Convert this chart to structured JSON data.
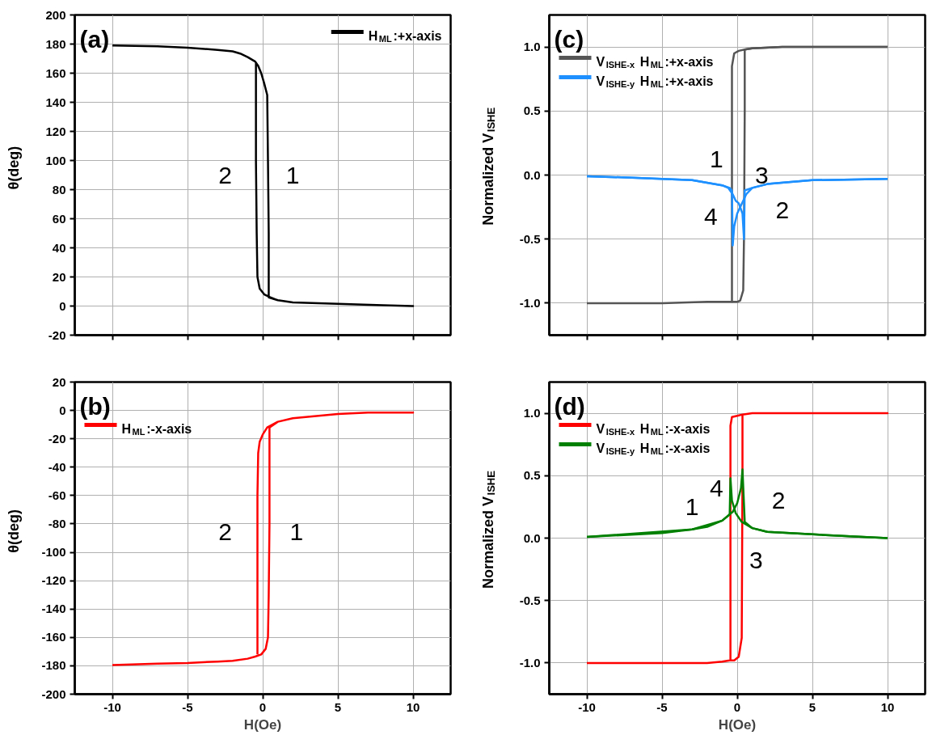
{
  "chart_data": [
    {
      "type": "line",
      "ylabel": "θ(deg)",
      "xlim": [
        -12.5,
        12.5
      ],
      "xticks": [
        -10,
        -5,
        0,
        5,
        10
      ],
      "ylim": [
        -20,
        200
      ],
      "yticks": [
        -20,
        0,
        20,
        40,
        60,
        80,
        100,
        120,
        140,
        160,
        180,
        200
      ],
      "grid": true,
      "legend": "top right",
      "tick_labels": "y",
      "annotations": [
        "(a)",
        "2",
        "1"
      ],
      "series": [
        {
          "name": "H$_{ML}$:+x-axis",
          "color": "#000000",
          "x": [
            -10,
            -7,
            -5,
            -3,
            -2,
            -1.5,
            -1,
            -0.5,
            -0.3,
            -0.1,
            0.1,
            0.3,
            0.35,
            0.4,
            0.4,
            1,
            2,
            5,
            8,
            10,
            8,
            5,
            2,
            1,
            0.5,
            0.1,
            -0.2,
            -0.35,
            -0.4,
            -0.45,
            -0.45,
            -0.45
          ],
          "values": [
            179,
            178.5,
            177.5,
            176,
            175,
            173.5,
            171,
            168,
            165,
            160,
            153,
            145,
            100,
            50,
            6,
            4,
            2.5,
            1.5,
            0.5,
            0,
            0.5,
            1.5,
            2.5,
            4,
            6,
            8,
            12,
            20,
            50,
            100,
            140,
            167
          ]
        }
      ]
    },
    {
      "type": "line",
      "ylabel": "Normalized V$_{ISHE}$",
      "xlim": [
        -12.5,
        12.5
      ],
      "xticks": [
        -10,
        -5,
        0,
        5,
        10
      ],
      "ylim": [
        -1.25,
        1.25
      ],
      "yticks": [
        {
          "value": -1.0,
          "label": "-1.0"
        },
        {
          "value": -0.5,
          "label": "-0.5"
        },
        {
          "value": 0.0,
          "label": "0.0"
        },
        {
          "value": 0.5,
          "label": "0.5"
        },
        {
          "value": 1.0,
          "label": "1.0"
        }
      ],
      "grid": true,
      "legend": "top left",
      "tick_labels": "y",
      "annotations": [
        "(c)",
        "1",
        "3",
        "2",
        "4"
      ],
      "series": [
        {
          "name": "V$_{ISHE-x}$ H$_{ML}$:+x-axis",
          "color": "#555555",
          "x": [
            -10,
            -5,
            -2,
            -0.35,
            -0.35,
            -0.35,
            -0.2,
            0.1,
            0.5,
            1,
            3,
            10
          ],
          "values": [
            -1,
            -1,
            -0.99,
            -0.99,
            0.5,
            0.85,
            0.95,
            0.97,
            0.98,
            0.99,
            1,
            1
          ]
        },
        {
          "color": "#555555",
          "x": [
            -0.35,
            0,
            0.2,
            0.4,
            0.45,
            0.5,
            0.5,
            1,
            3,
            10
          ],
          "values": [
            -0.99,
            -0.99,
            -0.98,
            -0.9,
            -0.5,
            0.5,
            0.98,
            0.99,
            1,
            1
          ]
        },
        {
          "name": "V$_{ISHE-y}$ H$_{ML}$:+x-axis",
          "color": "#1e90ff",
          "x": [
            -10,
            -7,
            -5,
            -3,
            -2,
            -1,
            -0.5,
            -0.35,
            -0.3,
            -0.2,
            0,
            0.2,
            0.4,
            0.6,
            1,
            2,
            5,
            10
          ],
          "values": [
            -0.01,
            -0.02,
            -0.03,
            -0.04,
            -0.06,
            -0.08,
            -0.1,
            -0.12,
            -0.55,
            -0.4,
            -0.3,
            -0.25,
            -0.2,
            -0.15,
            -0.1,
            -0.07,
            -0.04,
            -0.03
          ]
        },
        {
          "color": "#1e90ff",
          "x": [
            -10,
            -7,
            -3,
            -1,
            -0.6,
            -0.3,
            -0.1,
            0.1,
            0.35,
            0.45,
            0.5,
            1,
            2,
            5,
            10
          ],
          "values": [
            -0.01,
            -0.02,
            -0.04,
            -0.08,
            -0.1,
            -0.15,
            -0.2,
            -0.22,
            -0.3,
            -0.5,
            -0.12,
            -0.1,
            -0.07,
            -0.04,
            -0.03
          ]
        }
      ]
    },
    {
      "type": "line",
      "xlabel": "H(Oe)",
      "ylabel": "θ(deg)",
      "xlim": [
        -12.5,
        12.5
      ],
      "xticks": [
        -10,
        -5,
        0,
        5,
        10
      ],
      "ylim": [
        -200,
        20
      ],
      "yticks": [
        -200,
        -180,
        -160,
        -140,
        -120,
        -100,
        -80,
        -60,
        -40,
        -20,
        0,
        20
      ],
      "grid": true,
      "legend": "top left",
      "annotations": [
        "(b)",
        "2",
        "1"
      ],
      "series": [
        {
          "name": "H$_{ML}$:-x-axis",
          "color": "#ff0000",
          "x": [
            -10,
            -7,
            -5,
            -3,
            -2,
            -1,
            -0.5,
            -0.1,
            0.2,
            0.35,
            0.4,
            0.45,
            0.45,
            1,
            2,
            5,
            7,
            10,
            7,
            5,
            2,
            1,
            0.3,
            0,
            -0.2,
            -0.3,
            -0.35,
            -0.35,
            -0.35
          ],
          "values": [
            -179.5,
            -178.5,
            -178,
            -177,
            -176.5,
            -175,
            -173.5,
            -172,
            -168,
            -160,
            -130,
            -80,
            -12,
            -8,
            -5.5,
            -2.5,
            -1.5,
            -1.5,
            -1.5,
            -2.5,
            -5.5,
            -8,
            -12,
            -17,
            -22,
            -30,
            -60,
            -120,
            -172
          ]
        }
      ]
    },
    {
      "type": "line",
      "xlabel": "H(Oe)",
      "ylabel": "Normalized V$_{ISHE}$",
      "xlim": [
        -12.5,
        12.5
      ],
      "xticks": [
        -10,
        -5,
        0,
        5,
        10
      ],
      "ylim": [
        -1.25,
        1.25
      ],
      "yticks": [
        {
          "value": -1.0,
          "label": "-1.0"
        },
        {
          "value": -0.5,
          "label": "-0.5"
        },
        {
          "value": 0.0,
          "label": "0.0"
        },
        {
          "value": 0.5,
          "label": "0.5"
        },
        {
          "value": 1.0,
          "label": "1.0"
        }
      ],
      "grid": true,
      "legend": "top left",
      "annotations": [
        "(d)",
        "1",
        "4",
        "2",
        "3"
      ],
      "series": [
        {
          "name": "V$_{ISHE-x}$ H$_{ML}$:-x-axis",
          "color": "#ff0000",
          "x": [
            -10,
            -2,
            -1,
            -0.5,
            -0.45,
            -0.45,
            -0.35,
            0,
            0.35,
            1,
            10,
            1,
            0.35,
            0.35,
            0.3,
            0.1,
            -0.2,
            -0.45
          ],
          "values": [
            -1,
            -1,
            -0.99,
            -0.98,
            -0.98,
            0.9,
            0.97,
            0.98,
            0.99,
            1,
            1,
            1,
            0.99,
            0.5,
            -0.8,
            -0.95,
            -0.98,
            -0.98
          ]
        },
        {
          "name": "V$_{ISHE-y}$ H$_{ML}$:-x-axis",
          "color": "#008000",
          "x": [
            -10,
            -5,
            -3,
            -2,
            -1,
            -0.5,
            -0.45,
            -0.35,
            -0.1,
            0.3,
            1,
            2,
            5,
            10
          ],
          "values": [
            0.01,
            0.04,
            0.07,
            0.09,
            0.14,
            0.19,
            0.48,
            0.3,
            0.2,
            0.13,
            0.08,
            0.05,
            0.03,
            0
          ]
        },
        {
          "color": "#008000",
          "x": [
            -10,
            -3,
            -1,
            -0.3,
            0,
            0.25,
            0.35,
            0.5,
            1,
            2,
            5,
            10
          ],
          "values": [
            0.01,
            0.07,
            0.14,
            0.21,
            0.28,
            0.4,
            0.55,
            0.13,
            0.08,
            0.05,
            0.03,
            0
          ]
        }
      ]
    }
  ]
}
